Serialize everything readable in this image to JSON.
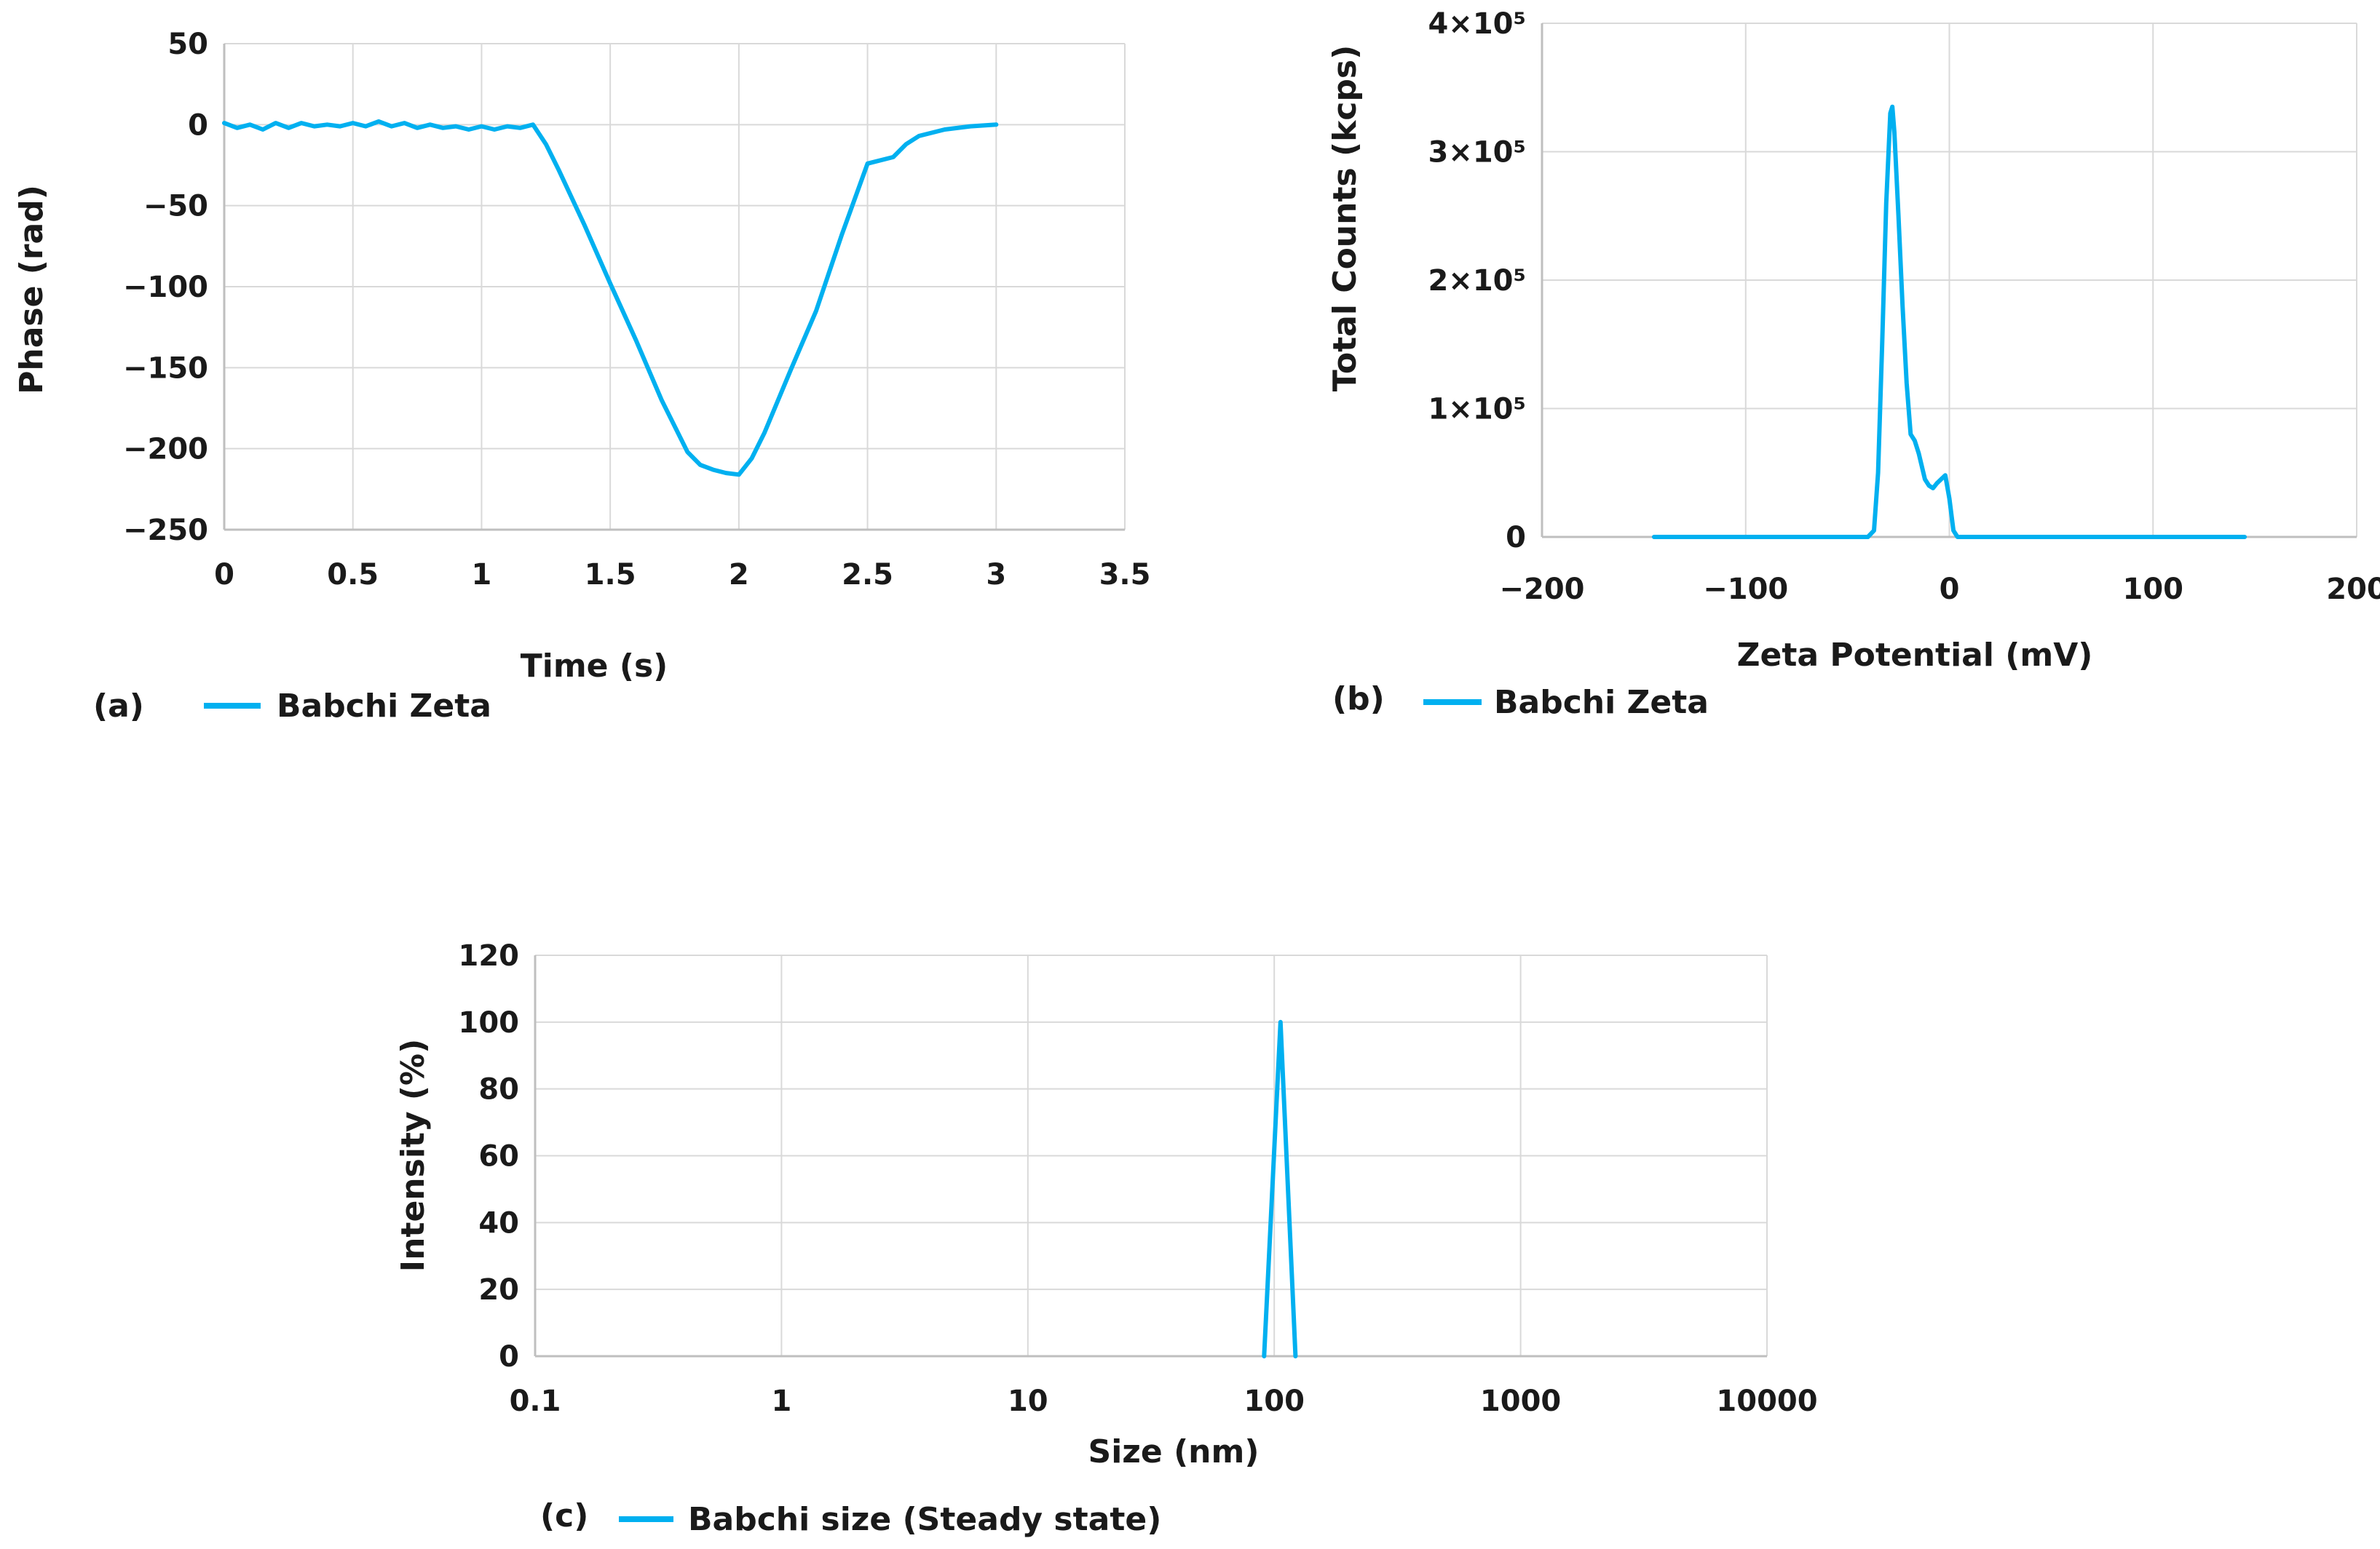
{
  "accent_color": "#00b0f0",
  "chart_data": [
    {
      "id": "a",
      "type": "line",
      "panel_label": "(a)",
      "xlabel": "Time (s)",
      "ylabel": "Phase (rad)",
      "xlim": [
        0,
        3.5
      ],
      "ylim": [
        -250,
        50
      ],
      "x_ticks": [
        0,
        0.5,
        1,
        1.5,
        2,
        2.5,
        3,
        3.5
      ],
      "x_tick_labels": [
        "0",
        "0.5",
        "1",
        "1.5",
        "2",
        "2.5",
        "3",
        "3.5"
      ],
      "y_ticks": [
        50,
        0,
        -50,
        -100,
        -150,
        -200,
        -250
      ],
      "y_tick_labels": [
        "50",
        "0",
        "−50",
        "−100",
        "−150",
        "−200",
        "−250"
      ],
      "grid": true,
      "legend": "bottom-left",
      "series": [
        {
          "name": "Babchi Zeta",
          "x": [
            0,
            0.05,
            0.1,
            0.15,
            0.2,
            0.25,
            0.3,
            0.35,
            0.4,
            0.45,
            0.5,
            0.55,
            0.6,
            0.65,
            0.7,
            0.75,
            0.8,
            0.85,
            0.9,
            0.95,
            1.0,
            1.05,
            1.1,
            1.15,
            1.2,
            1.25,
            1.3,
            1.4,
            1.5,
            1.6,
            1.7,
            1.8,
            1.85,
            1.9,
            1.95,
            2.0,
            2.05,
            2.1,
            2.2,
            2.3,
            2.4,
            2.5,
            2.6,
            2.65,
            2.7,
            2.8,
            2.9,
            3.0
          ],
          "values": [
            1,
            -2,
            0,
            -3,
            1,
            -2,
            1,
            -1,
            0,
            -1,
            1,
            -1,
            2,
            -1,
            1,
            -2,
            0,
            -2,
            -1,
            -3,
            -1,
            -3,
            -1,
            -2,
            0,
            -12,
            -28,
            -62,
            -98,
            -133,
            -170,
            -202,
            -210,
            -213,
            -215,
            -216,
            -206,
            -190,
            -152,
            -115,
            -68,
            -24,
            -20,
            -12,
            -7,
            -3,
            -1,
            0
          ]
        }
      ]
    },
    {
      "id": "b",
      "type": "line",
      "panel_label": "(b)",
      "xlabel": "Zeta Potential (mV)",
      "ylabel": "Total Counts (kcps)",
      "xlim": [
        -200,
        200
      ],
      "ylim": [
        0,
        400000
      ],
      "x_ticks": [
        -200,
        -100,
        0,
        100,
        200
      ],
      "x_tick_labels": [
        "−200",
        "−100",
        "0",
        "100",
        "200"
      ],
      "y_ticks": [
        0,
        100000,
        200000,
        300000,
        400000
      ],
      "y_tick_labels": [
        "0",
        "1×10⁵",
        "2×10⁵",
        "3×10⁵",
        "4×10⁵"
      ],
      "grid": true,
      "legend": "bottom-left",
      "series": [
        {
          "name": "Babchi Zeta",
          "x": [
            -145,
            -100,
            -50,
            -40,
            -37,
            -35,
            -33,
            -31,
            -29,
            -28,
            -27,
            -25,
            -23,
            -21,
            -19,
            -17,
            -15,
            -12,
            -10,
            -8,
            -6,
            -4,
            -2,
            0,
            2,
            4,
            6,
            10,
            50,
            100,
            145
          ],
          "values": [
            0,
            0,
            0,
            0,
            5000,
            50000,
            150000,
            260000,
            330000,
            335000,
            315000,
            250000,
            180000,
            120000,
            80000,
            75000,
            65000,
            45000,
            40000,
            38000,
            42000,
            45000,
            48000,
            30000,
            5000,
            0,
            0,
            0,
            0,
            0,
            0
          ]
        }
      ]
    },
    {
      "id": "c",
      "type": "line",
      "panel_label": "(c)",
      "xlabel": "Size (nm)",
      "ylabel": "Intensity (%)",
      "xscale": "log",
      "xlim": [
        0.1,
        10000
      ],
      "ylim": [
        0,
        120
      ],
      "x_ticks": [
        0.1,
        1,
        10,
        100,
        1000,
        10000
      ],
      "x_tick_labels": [
        "0.1",
        "1",
        "10",
        "100",
        "1000",
        "10000"
      ],
      "y_ticks": [
        0,
        20,
        40,
        60,
        80,
        100,
        120
      ],
      "y_tick_labels": [
        "0",
        "20",
        "40",
        "60",
        "80",
        "100",
        "120"
      ],
      "grid": true,
      "legend": "bottom-left",
      "series": [
        {
          "name": "Babchi size (Steady state)",
          "x": [
            91,
            106,
            122
          ],
          "values": [
            0,
            100,
            0
          ]
        }
      ]
    }
  ]
}
